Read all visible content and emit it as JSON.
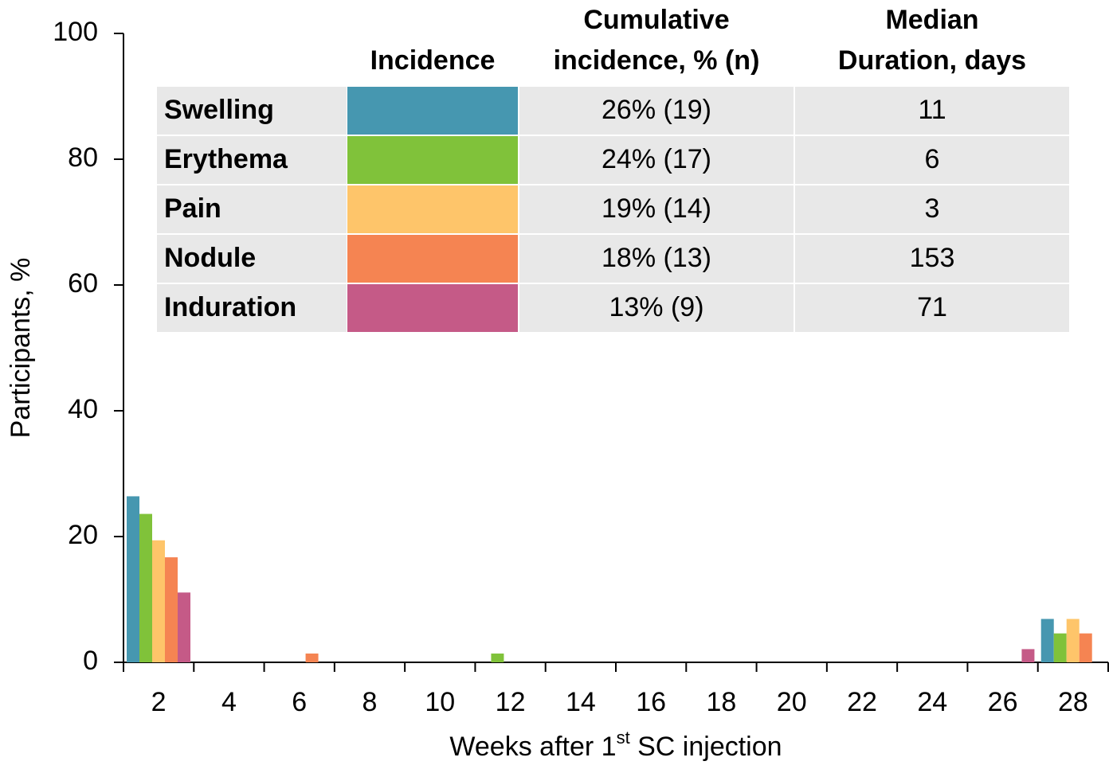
{
  "chart_data": {
    "type": "bar",
    "ylabel": "Participants, %",
    "xlabel": [
      "Weeks after 1",
      "st",
      " SC injection"
    ],
    "categories": [
      "2",
      "4",
      "6",
      "8",
      "10",
      "12",
      "14",
      "16",
      "18",
      "20",
      "22",
      "24",
      "26",
      "28"
    ],
    "ylim": [
      0,
      100
    ],
    "yticks": [
      0,
      20,
      40,
      60,
      80,
      100
    ],
    "series": [
      {
        "name": "Swelling",
        "color": "#4697b0",
        "values": [
          26.4,
          0,
          0,
          0,
          0,
          0,
          0,
          0,
          0,
          0,
          0,
          0,
          0,
          6.9
        ]
      },
      {
        "name": "Erythema",
        "color": "#80c23a",
        "values": [
          23.6,
          0,
          0,
          0,
          0,
          1.4,
          0,
          0,
          0,
          0,
          0,
          0,
          0,
          4.6
        ]
      },
      {
        "name": "Pain",
        "color": "#fec56a",
        "values": [
          19.4,
          0,
          0,
          0,
          0,
          0,
          0,
          0,
          0,
          0,
          0,
          0,
          0,
          6.9
        ]
      },
      {
        "name": "Nodule",
        "color": "#f58452",
        "values": [
          16.7,
          0,
          1.4,
          0,
          0,
          0,
          0,
          0,
          0,
          0,
          0,
          0,
          0,
          4.6
        ]
      },
      {
        "name": "Induration",
        "color": "#c55a87",
        "values": [
          11.1,
          0,
          0,
          0,
          0,
          0,
          0,
          0,
          0,
          0,
          0,
          0,
          2.1,
          0
        ]
      }
    ]
  },
  "table": {
    "header": [
      [
        "Incidence"
      ],
      [
        "Cumulative",
        "incidence, % (n)"
      ],
      [
        "Median",
        "Duration, days"
      ]
    ],
    "rows": [
      [
        "26% (19)",
        "11"
      ],
      [
        "24% (17)",
        "6"
      ],
      [
        "19% (14)",
        "3"
      ],
      [
        "18% (13)",
        "153"
      ],
      [
        "13% (9)",
        "71"
      ]
    ]
  }
}
